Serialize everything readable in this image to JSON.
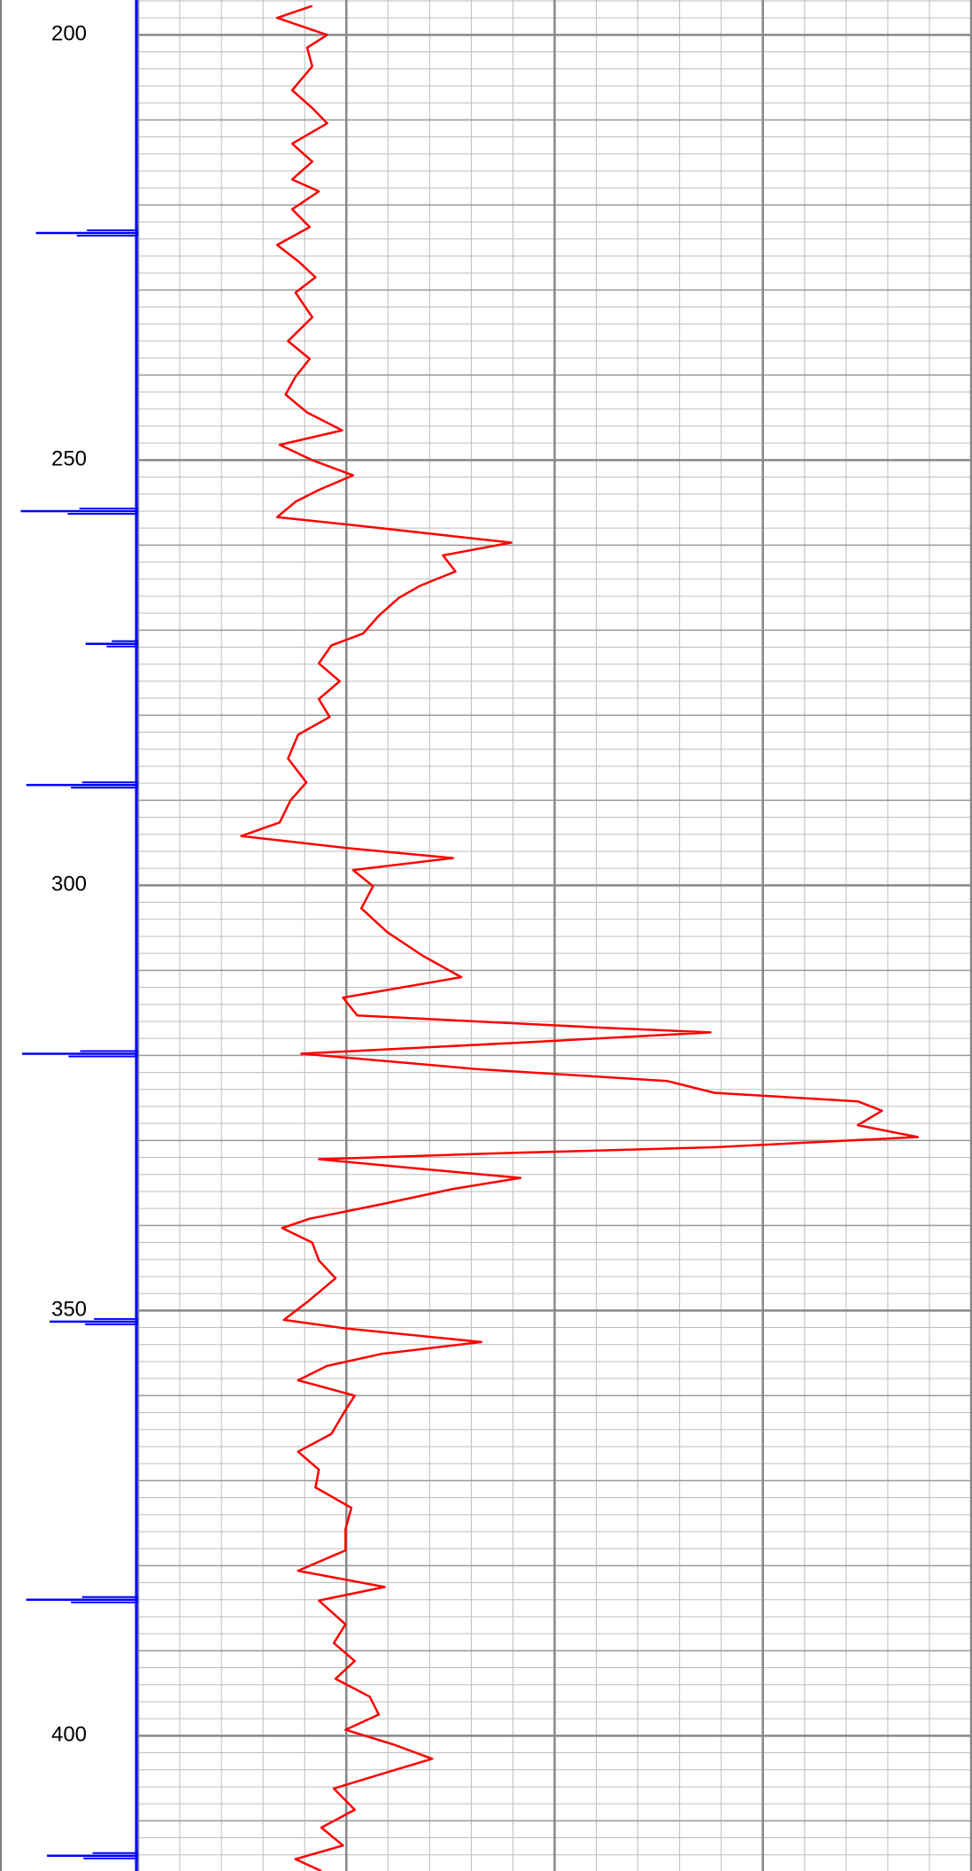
{
  "chart_data": {
    "type": "line",
    "ylim": [
      195.9,
      415.9
    ],
    "yticks": [
      200,
      250,
      300,
      350,
      400
    ],
    "xlim": [
      0,
      100
    ],
    "grid": true,
    "xgrid_major": [
      0,
      25,
      50,
      75,
      100
    ],
    "xgrid_minor": [
      5,
      10,
      15,
      20,
      30,
      35,
      40,
      45,
      55,
      60,
      65,
      70,
      80,
      85,
      90,
      95
    ],
    "ygrid_major": [
      200,
      210,
      220,
      230,
      240,
      250,
      260,
      270,
      280,
      290,
      300,
      310,
      320,
      330,
      340,
      350,
      360,
      370,
      380,
      390,
      400,
      410
    ],
    "ygrid_minor": [
      196,
      198,
      202,
      204,
      206,
      208,
      212,
      214,
      216,
      218,
      222,
      224,
      226,
      228,
      232,
      234,
      236,
      238,
      242,
      244,
      246,
      248,
      252,
      254,
      256,
      258,
      262,
      264,
      266,
      268,
      272,
      274,
      276,
      278,
      282,
      284,
      286,
      288,
      292,
      294,
      296,
      298,
      302,
      304,
      306,
      308,
      312,
      314,
      316,
      318,
      322,
      324,
      326,
      328,
      332,
      334,
      336,
      338,
      342,
      344,
      346,
      348,
      352,
      354,
      356,
      358,
      362,
      364,
      366,
      368,
      372,
      374,
      376,
      378,
      382,
      384,
      386,
      388,
      392,
      394,
      396,
      398,
      402,
      404,
      406,
      408,
      412,
      414
    ],
    "series": [
      {
        "color": "#ff0000",
        "depth": [
          196.6,
          198.0,
          200.0,
          201.5,
          203.7,
          206.5,
          208.6,
          210.4,
          212.8,
          214.9,
          217.0,
          218.4,
          220.5,
          222.6,
          224.7,
          226.6,
          228.5,
          230.3,
          233.2,
          236.0,
          238.1,
          240.2,
          242.3,
          244.4,
          246.5,
          248.2,
          250.0,
          251.8,
          253.5,
          254.9,
          256.7,
          257.7,
          259.7,
          261.2,
          263.1,
          264.8,
          266.2,
          268.3,
          270.4,
          271.8,
          273.9,
          276.0,
          278.1,
          280.2,
          282.3,
          285.1,
          287.9,
          290.0,
          292.6,
          294.2,
          295.6,
          296.8,
          298.2,
          300.1,
          302.7,
          305.5,
          308.3,
          310.8,
          313.2,
          315.3,
          316.7,
          317.3,
          318.4,
          319.8,
          321.6,
          323.0,
          324.4,
          325.4,
          326.5,
          328.2,
          329.6,
          330.8,
          331.5,
          332.2,
          333.3,
          334.4,
          335.7,
          337.5,
          339.2,
          340.3,
          342.0,
          344.1,
          346.2,
          349.0,
          351.1,
          352.1,
          353.7,
          355.1,
          356.5,
          358.2,
          360.0,
          361.7,
          364.5,
          366.6,
          368.7,
          370.8,
          373.2,
          375.7,
          378.2,
          380.6,
          382.5,
          384.1,
          386.9,
          389.1,
          391.2,
          393.3,
          395.4,
          397.5,
          399.3,
          401.0,
          402.7,
          404.5,
          406.2,
          408.7,
          410.8,
          412.9,
          414.5,
          415.9
        ],
        "values": [
          20.9,
          16.7,
          22.7,
          20.3,
          20.9,
          18.5,
          20.9,
          22.7,
          18.5,
          20.9,
          18.5,
          21.7,
          18.5,
          20.6,
          16.7,
          19.2,
          21.3,
          18.9,
          20.9,
          18.0,
          20.6,
          18.9,
          17.7,
          20.3,
          24.5,
          17.0,
          20.9,
          25.8,
          21.7,
          18.9,
          16.7,
          26.3,
          44.8,
          36.6,
          38.1,
          33.8,
          31.3,
          28.9,
          27.0,
          23.2,
          21.7,
          24.2,
          21.7,
          23.0,
          19.2,
          18.0,
          20.2,
          18.3,
          17.0,
          12.4,
          24.9,
          37.8,
          25.8,
          28.2,
          26.8,
          29.9,
          34.2,
          38.8,
          24.6,
          26.3,
          54.9,
          68.7,
          47.8,
          19.6,
          40.6,
          63.5,
          69.2,
          86.4,
          89.3,
          86.4,
          93.6,
          69.2,
          43.5,
          21.7,
          33.5,
          45.9,
          37.8,
          29.2,
          20.6,
          17.3,
          20.9,
          21.7,
          23.7,
          20.3,
          17.5,
          24.9,
          41.2,
          29.2,
          22.7,
          19.2,
          26.0,
          24.9,
          23.2,
          19.2,
          21.7,
          21.3,
          25.6,
          24.9,
          24.9,
          19.2,
          29.6,
          21.7,
          24.9,
          23.5,
          26.0,
          23.7,
          27.8,
          28.9,
          24.9,
          30.6,
          35.3,
          29.2,
          23.5,
          26.0,
          22.0,
          24.6,
          18.9,
          22.0
        ]
      }
    ],
    "markers": {
      "color": "#0000ff",
      "xlim": [
        0,
        100
      ],
      "depth": [
        223.3,
        256.0,
        271.6,
        288.2,
        319.8,
        351.3,
        384.0,
        414.1
      ],
      "values": [
        74,
        85,
        38,
        81,
        84,
        64,
        81,
        66
      ]
    }
  }
}
